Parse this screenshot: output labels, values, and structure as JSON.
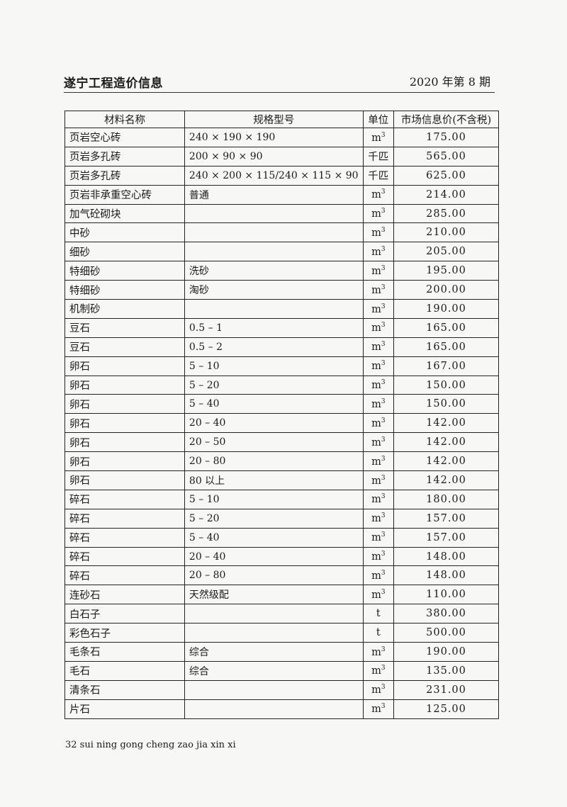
{
  "header": {
    "title": "遂宁工程造价信息",
    "issue": "2020 年第 8 期"
  },
  "table": {
    "columns": [
      "材料名称",
      "规格型号",
      "单位",
      "市场信息价(不含税)"
    ],
    "rows": [
      [
        "页岩空心砖",
        "240 × 190 × 190",
        "m³",
        "175.00"
      ],
      [
        "页岩多孔砖",
        "200 × 90 × 90",
        "千匹",
        "565.00"
      ],
      [
        "页岩多孔砖",
        "240 × 200 × 115/240 × 115 × 90",
        "千匹",
        "625.00"
      ],
      [
        "页岩非承重空心砖",
        "普通",
        "m³",
        "214.00"
      ],
      [
        "加气砼砌块",
        "",
        "m³",
        "285.00"
      ],
      [
        "中砂",
        "",
        "m³",
        "210.00"
      ],
      [
        "细砂",
        "",
        "m³",
        "205.00"
      ],
      [
        "特细砂",
        "洗砂",
        "m³",
        "195.00"
      ],
      [
        "特细砂",
        "淘砂",
        "m³",
        "200.00"
      ],
      [
        "机制砂",
        "",
        "m³",
        "190.00"
      ],
      [
        "豆石",
        "0.5 – 1",
        "m³",
        "165.00"
      ],
      [
        "豆石",
        "0.5 – 2",
        "m³",
        "165.00"
      ],
      [
        "卵石",
        "5 – 10",
        "m³",
        "167.00"
      ],
      [
        "卵石",
        "5 – 20",
        "m³",
        "150.00"
      ],
      [
        "卵石",
        "5 – 40",
        "m³",
        "150.00"
      ],
      [
        "卵石",
        "20 – 40",
        "m³",
        "142.00"
      ],
      [
        "卵石",
        "20 – 50",
        "m³",
        "142.00"
      ],
      [
        "卵石",
        "20 – 80",
        "m³",
        "142.00"
      ],
      [
        "卵石",
        "80 以上",
        "m³",
        "142.00"
      ],
      [
        "碎石",
        "5 – 10",
        "m³",
        "180.00"
      ],
      [
        "碎石",
        "5 – 20",
        "m³",
        "157.00"
      ],
      [
        "碎石",
        "5 – 40",
        "m³",
        "157.00"
      ],
      [
        "碎石",
        "20 – 40",
        "m³",
        "148.00"
      ],
      [
        "碎石",
        "20 – 80",
        "m³",
        "148.00"
      ],
      [
        "连砂石",
        "天然级配",
        "m³",
        "110.00"
      ],
      [
        "白石子",
        "",
        "t",
        "380.00"
      ],
      [
        "彩色石子",
        "",
        "t",
        "500.00"
      ],
      [
        "毛条石",
        "综合",
        "m³",
        "190.00"
      ],
      [
        "毛石",
        "综合",
        "m³",
        "135.00"
      ],
      [
        "清条石",
        "",
        "m³",
        "231.00"
      ],
      [
        "片石",
        "",
        "m³",
        "125.00"
      ]
    ]
  },
  "footer": {
    "text": "32 sui ning gong cheng zao jia xin xi"
  }
}
